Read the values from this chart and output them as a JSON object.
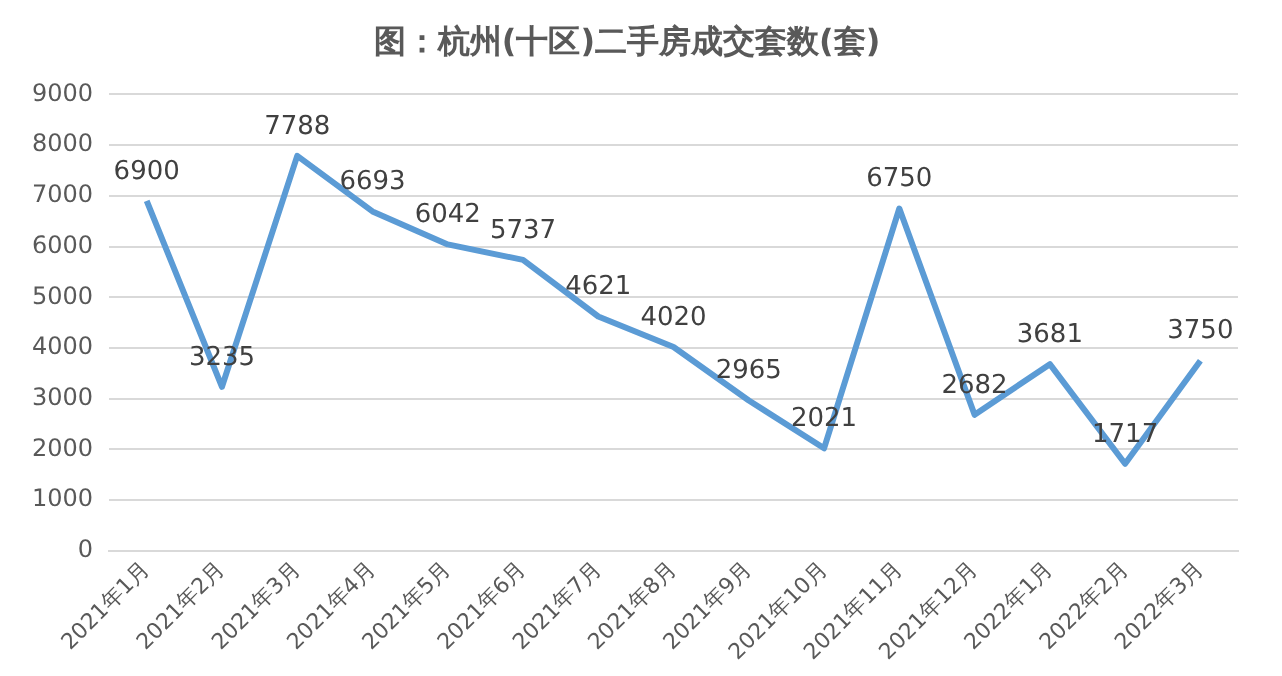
{
  "chart_data": {
    "type": "line",
    "title": "图：杭州(十区)二手房成交套数(套)",
    "categories": [
      "2021年1月",
      "2021年2月",
      "2021年3月",
      "2021年4月",
      "2021年5月",
      "2021年6月",
      "2021年7月",
      "2021年8月",
      "2021年9月",
      "2021年10月",
      "2021年11月",
      "2021年12月",
      "2022年1月",
      "2022年2月",
      "2022年3月"
    ],
    "series": [
      {
        "color": "#5b9bd5",
        "values": [
          6900,
          3235,
          7788,
          6693,
          6042,
          5737,
          4621,
          4020,
          2965,
          2021,
          6750,
          2682,
          3681,
          1717,
          3750
        ]
      }
    ],
    "ylim": [
      0,
      9000
    ],
    "yticks": [
      0,
      1000,
      2000,
      3000,
      4000,
      5000,
      6000,
      7000,
      8000,
      9000
    ],
    "grid": "y",
    "legend": false,
    "marker": "none",
    "line_style": "solid",
    "data_labels": true
  }
}
